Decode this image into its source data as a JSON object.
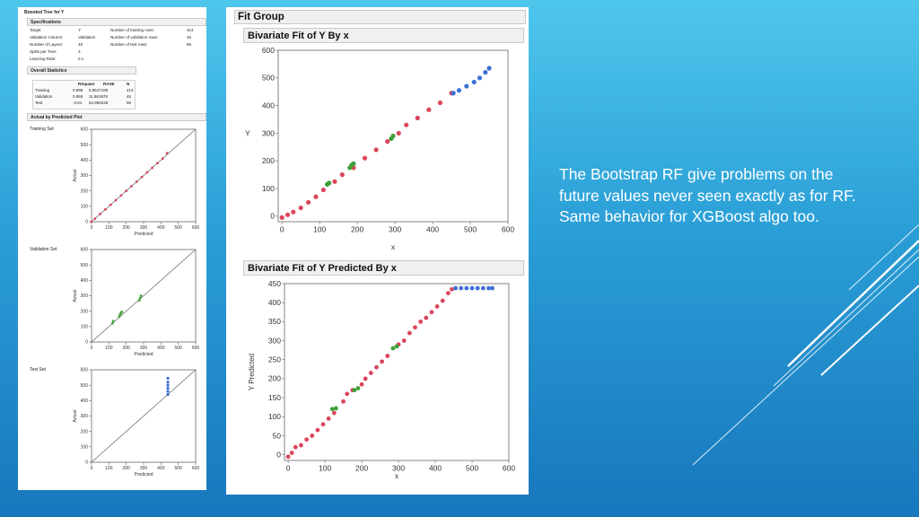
{
  "colors": {
    "training": "#d9465c",
    "validation": "#3fa03a",
    "test": "#3d6fd6",
    "axis": "#444444"
  },
  "left_panel": {
    "title": "Boosted Tree for Y",
    "specifications": {
      "header": "Specifications",
      "rows": [
        {
          "label": "Target",
          "value": "Y",
          "label2": "Number of training rows:",
          "value2": "414"
        },
        {
          "label": "Validation Column:",
          "value": "Validation",
          "label2": "Number of validation rows:",
          "value2": "45"
        },
        {
          "label": "Number of Layers:",
          "value": "49",
          "label2": "Number of test rows:",
          "value2": "96"
        },
        {
          "label": "Splits per Tree:",
          "value": "3",
          "label2": "",
          "value2": ""
        },
        {
          "label": "Learning Rate:",
          "value": "0.1",
          "label2": "",
          "value2": ""
        }
      ]
    },
    "overall_statistics": {
      "header": "Overall Statistics",
      "columns": [
        "RSquare",
        "RASE",
        "N"
      ],
      "rows": [
        {
          "name": "Training",
          "rsquare": "0.998",
          "rase": "5.9547185",
          "n": "414"
        },
        {
          "name": "Validation",
          "rsquare": "0.959",
          "rase": "11.861978",
          "n": "45"
        },
        {
          "name": "Test",
          "rsquare": "-3.61",
          "rase": "64.960248",
          "n": "96"
        }
      ]
    },
    "plot_section": {
      "header": "Actual by Predicted Plot",
      "plots": [
        {
          "label": "Training Set",
          "xlabel": "Predicted",
          "ylabel": "Actual"
        },
        {
          "label": "Validation Set",
          "xlabel": "Predicted",
          "ylabel": "Actual"
        },
        {
          "label": "Test Set",
          "xlabel": "Predicted",
          "ylabel": "Actual"
        }
      ]
    }
  },
  "right_panel": {
    "title": "Fit Group",
    "plot1": {
      "header": "Bivariate Fit of Y By x",
      "xlabel": "x",
      "ylabel": "Y"
    },
    "plot2": {
      "header": "Bivariate Fit of Y Predicted By x",
      "xlabel": "x",
      "ylabel": "Y Predicted"
    }
  },
  "slide_text": "The Bootstrap RF give problems on the future values never seen exactly as for RF. Same behavior for XGBoost algo too.",
  "chart_data": [
    {
      "type": "scatter",
      "label": "Training Set",
      "xlabel": "Predicted",
      "ylabel": "Actual",
      "xlim": [
        0,
        600
      ],
      "ylim": [
        0,
        600
      ],
      "xticks": [
        0,
        100,
        200,
        300,
        400,
        500,
        600
      ],
      "yticks": [
        0,
        100,
        200,
        300,
        400,
        500,
        600
      ],
      "reference_line": "diagonal",
      "series": [
        {
          "name": "Training",
          "color": "#d9465c",
          "points": [
            [
              0,
              0
            ],
            [
              20,
              20
            ],
            [
              50,
              50
            ],
            [
              80,
              80
            ],
            [
              110,
              110
            ],
            [
              140,
              140
            ],
            [
              170,
              170
            ],
            [
              200,
              200
            ],
            [
              230,
              230
            ],
            [
              260,
              260
            ],
            [
              290,
              290
            ],
            [
              320,
              320
            ],
            [
              350,
              350
            ],
            [
              380,
              380
            ],
            [
              410,
              410
            ],
            [
              435,
              445
            ]
          ]
        }
      ]
    },
    {
      "type": "scatter",
      "label": "Validation Set",
      "xlabel": "Predicted",
      "ylabel": "Actual",
      "xlim": [
        0,
        600
      ],
      "ylim": [
        0,
        600
      ],
      "xticks": [
        0,
        100,
        200,
        300,
        400,
        500,
        600
      ],
      "yticks": [
        0,
        100,
        200,
        300,
        400,
        500,
        600
      ],
      "reference_line": "diagonal",
      "series": [
        {
          "name": "Validation",
          "color": "#3fa03a",
          "points": [
            [
              120,
              120
            ],
            [
              125,
              135
            ],
            [
              160,
              165
            ],
            [
              165,
              180
            ],
            [
              170,
              190
            ],
            [
              175,
              195
            ],
            [
              275,
              270
            ],
            [
              280,
              285
            ],
            [
              285,
              300
            ]
          ]
        }
      ]
    },
    {
      "type": "scatter",
      "label": "Test Set",
      "xlabel": "Predicted",
      "ylabel": "Actual",
      "xlim": [
        0,
        600
      ],
      "ylim": [
        0,
        600
      ],
      "xticks": [
        0,
        100,
        200,
        300,
        400,
        500,
        600
      ],
      "yticks": [
        0,
        100,
        200,
        300,
        400,
        500,
        600
      ],
      "reference_line": "diagonal",
      "series": [
        {
          "name": "Test",
          "color": "#3d6fd6",
          "points": [
            [
              440,
              440
            ],
            [
              440,
              460
            ],
            [
              440,
              480
            ],
            [
              440,
              500
            ],
            [
              440,
              520
            ],
            [
              440,
              545
            ]
          ]
        }
      ]
    },
    {
      "type": "scatter",
      "label": "Bivariate Fit of Y By x",
      "xlabel": "x",
      "ylabel": "Y",
      "xlim": [
        -10,
        600
      ],
      "ylim": [
        -20,
        600
      ],
      "xticks": [
        0,
        100,
        200,
        300,
        400,
        500,
        600
      ],
      "yticks": [
        0,
        100,
        200,
        300,
        400,
        500,
        600
      ],
      "series": [
        {
          "name": "Training",
          "color": "#d9465c",
          "points": [
            [
              0,
              -5
            ],
            [
              15,
              5
            ],
            [
              30,
              15
            ],
            [
              50,
              30
            ],
            [
              70,
              50
            ],
            [
              90,
              70
            ],
            [
              110,
              95
            ],
            [
              140,
              125
            ],
            [
              160,
              150
            ],
            [
              190,
              175
            ],
            [
              220,
              210
            ],
            [
              250,
              240
            ],
            [
              280,
              270
            ],
            [
              310,
              300
            ],
            [
              330,
              330
            ],
            [
              360,
              355
            ],
            [
              390,
              385
            ],
            [
              420,
              410
            ],
            [
              450,
              445
            ]
          ]
        },
        {
          "name": "Validation",
          "color": "#3fa03a",
          "points": [
            [
              120,
              115
            ],
            [
              125,
              120
            ],
            [
              180,
              175
            ],
            [
              185,
              185
            ],
            [
              190,
              190
            ],
            [
              290,
              280
            ],
            [
              295,
              290
            ]
          ]
        },
        {
          "name": "Test",
          "color": "#3d6fd6",
          "points": [
            [
              455,
              445
            ],
            [
              470,
              455
            ],
            [
              490,
              470
            ],
            [
              510,
              485
            ],
            [
              525,
              500
            ],
            [
              540,
              520
            ],
            [
              550,
              535
            ]
          ]
        }
      ]
    },
    {
      "type": "scatter",
      "label": "Bivariate Fit of Y Predicted By x",
      "xlabel": "x",
      "ylabel": "Y Predicted",
      "xlim": [
        -10,
        600
      ],
      "ylim": [
        -15,
        450
      ],
      "xticks": [
        0,
        100,
        200,
        300,
        400,
        500,
        600
      ],
      "yticks": [
        0,
        50,
        100,
        150,
        200,
        250,
        300,
        350,
        400,
        450
      ],
      "series": [
        {
          "name": "Training",
          "color": "#d9465c",
          "points": [
            [
              0,
              -5
            ],
            [
              10,
              5
            ],
            [
              20,
              20
            ],
            [
              35,
              25
            ],
            [
              50,
              40
            ],
            [
              65,
              50
            ],
            [
              80,
              65
            ],
            [
              95,
              80
            ],
            [
              110,
              95
            ],
            [
              125,
              110
            ],
            [
              150,
              140
            ],
            [
              160,
              160
            ],
            [
              175,
              170
            ],
            [
              200,
              185
            ],
            [
              210,
              200
            ],
            [
              225,
              215
            ],
            [
              240,
              230
            ],
            [
              255,
              245
            ],
            [
              270,
              260
            ],
            [
              300,
              290
            ],
            [
              315,
              300
            ],
            [
              330,
              320
            ],
            [
              345,
              335
            ],
            [
              360,
              350
            ],
            [
              375,
              360
            ],
            [
              390,
              375
            ],
            [
              405,
              390
            ],
            [
              420,
              405
            ],
            [
              435,
              425
            ],
            [
              445,
              435
            ]
          ]
        },
        {
          "name": "Validation",
          "color": "#3fa03a",
          "points": [
            [
              120,
              120
            ],
            [
              130,
              122
            ],
            [
              180,
              170
            ],
            [
              190,
              175
            ],
            [
              285,
              280
            ],
            [
              295,
              285
            ]
          ]
        },
        {
          "name": "Test",
          "color": "#3d6fd6",
          "points": [
            [
              455,
              438
            ],
            [
              470,
              438
            ],
            [
              485,
              438
            ],
            [
              500,
              438
            ],
            [
              515,
              438
            ],
            [
              530,
              438
            ],
            [
              545,
              438
            ],
            [
              555,
              438
            ]
          ]
        }
      ]
    }
  ]
}
